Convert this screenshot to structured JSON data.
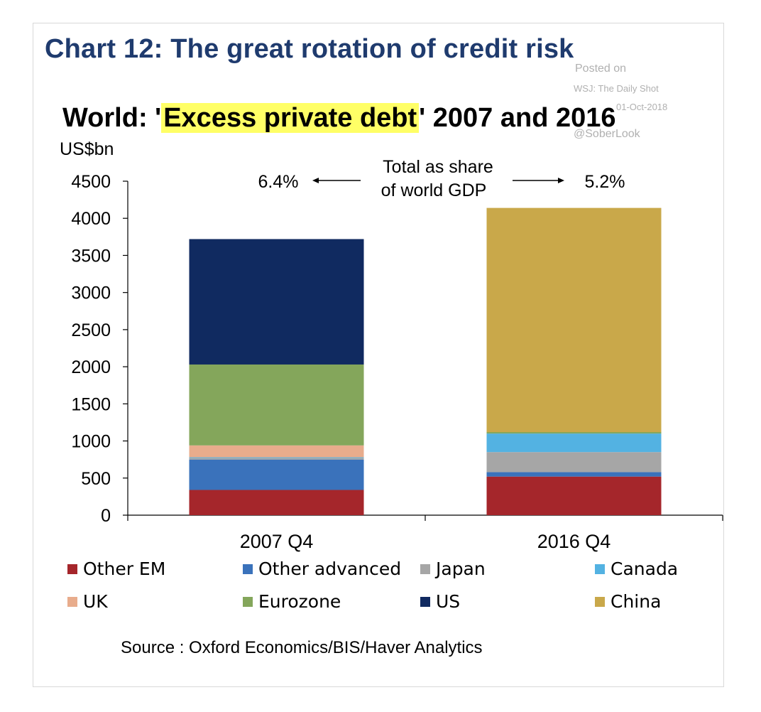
{
  "header": {
    "title": "Chart 12: The great rotation of credit risk",
    "subtitle_pre": "World: '",
    "subtitle_highlight": "Excess private debt",
    "subtitle_post": "' 2007 and 2016",
    "units": "US$bn"
  },
  "watermark": {
    "line1": "Posted on",
    "line2": "WSJ: The Daily Shot",
    "line3": "01-Oct-2018",
    "line4": "@SoberLook"
  },
  "annotation": {
    "left_value": "6.4%",
    "right_value": "5.2%",
    "label_line1": "Total as share",
    "label_line2": "of world GDP"
  },
  "source": "Source : Oxford Economics/BIS/Haver Analytics",
  "chart_data": {
    "type": "bar",
    "stacked": true,
    "categories": [
      "2007 Q4",
      "2016 Q4"
    ],
    "ylim": [
      0,
      4500
    ],
    "yticks": [
      0,
      500,
      1000,
      1500,
      2000,
      2500,
      3000,
      3500,
      4000,
      4500
    ],
    "ylabel": "US$bn",
    "series": [
      {
        "name": "Other EM",
        "color": "#a5262b",
        "values": [
          340,
          520
        ]
      },
      {
        "name": "Other advanced",
        "color": "#3a72bb",
        "values": [
          410,
          60
        ]
      },
      {
        "name": "Japan",
        "color": "#a6a6a6",
        "values": [
          20,
          270
        ]
      },
      {
        "name": "Canada",
        "color": "#53b2e2",
        "values": [
          10,
          250
        ]
      },
      {
        "name": "UK",
        "color": "#e8ac8c",
        "values": [
          160,
          0
        ]
      },
      {
        "name": "Eurozone",
        "color": "#84a65b",
        "values": [
          1090,
          20
        ]
      },
      {
        "name": "US",
        "color": "#102a60",
        "values": [
          1690,
          0
        ]
      },
      {
        "name": "China",
        "color": "#c9a84a",
        "values": [
          0,
          3020
        ]
      }
    ],
    "legend_order": [
      "Other EM",
      "Other advanced",
      "Japan",
      "Canada",
      "UK",
      "Eurozone",
      "US",
      "China"
    ]
  }
}
